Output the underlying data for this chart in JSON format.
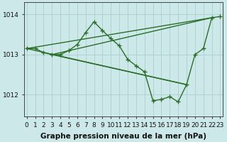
{
  "lines": [
    {
      "x": [
        0,
        1,
        2,
        3,
        4,
        5,
        6,
        7,
        8,
        9,
        10,
        11,
        12,
        13,
        14,
        15,
        16,
        17,
        18,
        19,
        20,
        21,
        22,
        23
      ],
      "y": [
        1013.15,
        1013.15,
        1013.05,
        1013.0,
        1013.0,
        1013.1,
        1013.25,
        1013.55,
        1013.82,
        1013.6,
        1013.4,
        1013.22,
        1012.88,
        1012.72,
        1012.57,
        1011.85,
        1011.88,
        1011.95,
        1011.82,
        1012.25,
        1013.0,
        1013.15,
        1013.92,
        1013.95
      ]
    },
    {
      "x": [
        0,
        3,
        22
      ],
      "y": [
        1013.15,
        1013.0,
        1013.92
      ]
    },
    {
      "x": [
        0,
        3,
        19
      ],
      "y": [
        1013.15,
        1013.0,
        1012.25
      ]
    },
    {
      "x": [
        3,
        7,
        8,
        10,
        11,
        12,
        13
      ],
      "y": [
        1013.0,
        1013.55,
        1013.82,
        1013.4,
        1013.22,
        1012.88,
        1012.72
      ]
    }
  ],
  "line_color": "#2a6e2a",
  "marker": "+",
  "bg_color": "#cce8e8",
  "grid_color": "#aacece",
  "xlabel": "Graphe pression niveau de la mer (hPa)",
  "xlabel_fontsize": 7.5,
  "yticks": [
    1012,
    1013,
    1014
  ],
  "xticks": [
    0,
    1,
    2,
    3,
    4,
    5,
    6,
    7,
    8,
    9,
    10,
    11,
    12,
    13,
    14,
    15,
    16,
    17,
    18,
    19,
    20,
    21,
    22,
    23
  ],
  "xlim": [
    -0.3,
    23.3
  ],
  "ylim": [
    1011.45,
    1014.3
  ],
  "tick_fontsize": 6.5,
  "line_width": 1.0,
  "marker_size": 5
}
